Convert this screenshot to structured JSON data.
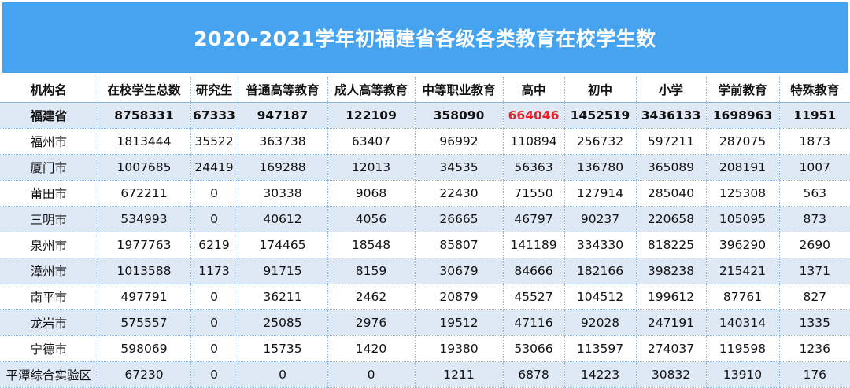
{
  "title": "2020-2021学年初福建省各级各类教育在校学生数",
  "headers": [
    "机构名",
    "在校学生总数",
    "研究生",
    "普通高等教育",
    "成人高等教育",
    "中等职业教育",
    "高中",
    "初中",
    "小学",
    "学前教育",
    "特殊教育"
  ],
  "province_row": [
    "福建省",
    "8758331",
    "67333",
    "947187",
    "122109",
    "358090",
    "664046",
    "1452519",
    "3436133",
    "1698963",
    "11951"
  ],
  "rows": [
    [
      "福州市",
      "1813444",
      "35522",
      "363738",
      "63407",
      "96992",
      "110894",
      "256732",
      "597211",
      "287075",
      "1873"
    ],
    [
      "厦门市",
      "1007685",
      "24419",
      "169288",
      "12013",
      "34535",
      "56363",
      "136780",
      "365089",
      "208191",
      "1007"
    ],
    [
      "莆田市",
      "672211",
      "0",
      "30338",
      "9068",
      "22430",
      "71550",
      "127914",
      "285040",
      "125308",
      "563"
    ],
    [
      "三明市",
      "534993",
      "0",
      "40612",
      "4056",
      "26665",
      "46797",
      "90237",
      "220658",
      "105095",
      "873"
    ],
    [
      "泉州市",
      "1977763",
      "6219",
      "174465",
      "18548",
      "85807",
      "141189",
      "334330",
      "818225",
      "396290",
      "2690"
    ],
    [
      "漳州市",
      "1013588",
      "1173",
      "91715",
      "8159",
      "30679",
      "84666",
      "182166",
      "398238",
      "215421",
      "1371"
    ],
    [
      "南平市",
      "497791",
      "0",
      "36211",
      "2462",
      "20879",
      "45527",
      "104512",
      "199612",
      "87761",
      "827"
    ],
    [
      "龙岩市",
      "575557",
      "0",
      "25085",
      "2976",
      "19512",
      "47116",
      "92028",
      "247191",
      "140314",
      "1335"
    ],
    [
      "宁德市",
      "598069",
      "0",
      "15735",
      "1420",
      "19380",
      "53066",
      "113597",
      "274037",
      "119598",
      "1236"
    ],
    [
      "平潭综合实验区",
      "67230",
      "0",
      "0",
      "0",
      "1211",
      "6878",
      "14223",
      "30832",
      "13910",
      "176"
    ]
  ],
  "colors": {
    "title_background": "#45a3ef",
    "row_stripe": "#dfe9f5",
    "highlight_value": "#e8202a"
  }
}
